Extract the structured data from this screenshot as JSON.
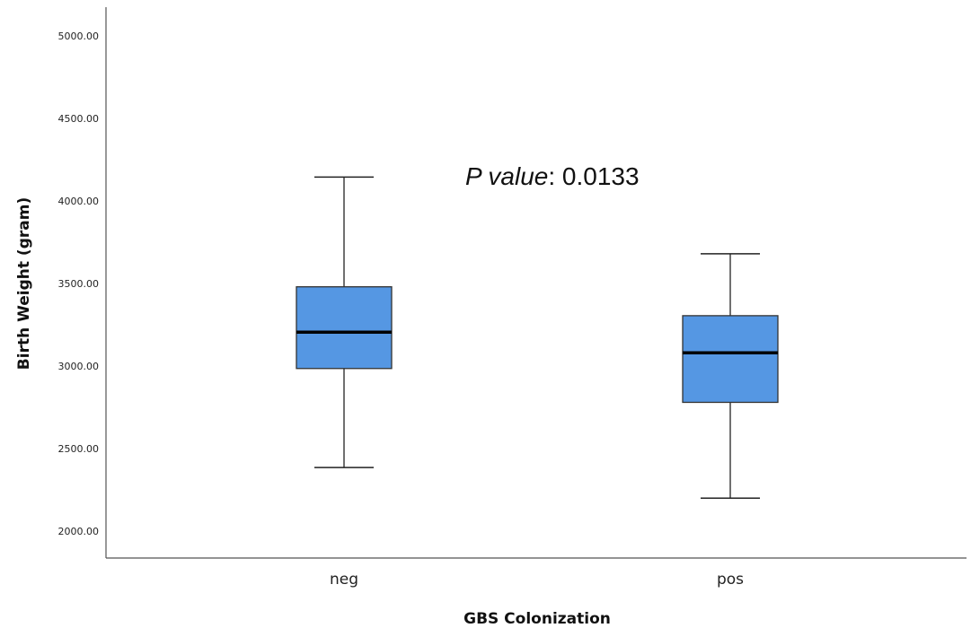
{
  "chart_data": {
    "type": "box",
    "xlabel": "GBS Colonization",
    "ylabel": "Birth Weight (gram)",
    "ylim": [
      2000,
      5000
    ],
    "yticks": [
      "2000.00",
      "2500.00",
      "3000.00",
      "3500.00",
      "4000.00",
      "4500.00",
      "5000.00"
    ],
    "categories": [
      "neg",
      "pos"
    ],
    "boxes": [
      {
        "category": "neg",
        "whisker_low": 2385,
        "q1": 2985,
        "median": 3205,
        "q3": 3480,
        "whisker_high": 4145
      },
      {
        "category": "pos",
        "whisker_low": 2200,
        "q1": 2780,
        "median": 3080,
        "q3": 3305,
        "whisker_high": 3680
      }
    ],
    "annotation": {
      "italic": "P value",
      "rest": ": 0.0133"
    },
    "box_color": "#5597e3",
    "grid": false
  }
}
